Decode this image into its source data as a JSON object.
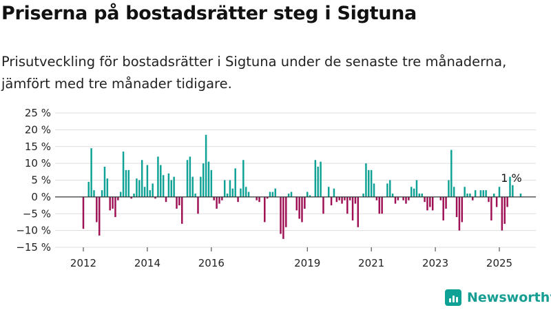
{
  "title": "Priserna på bostadsrätter steg i Sigtuna",
  "subtitle": "Prisutveckling för bostadsrätter i Sigtuna under de senaste tre månaderna, jämfört med tre månader tidigare.",
  "brand": {
    "name": "Newsworthy",
    "icon": "newsworthy-logo-icon"
  },
  "colors": {
    "positive": "#0ea296",
    "negative": "#9e0f55",
    "grid": "#dddddd",
    "zero": "#333333"
  },
  "chart_data": {
    "type": "bar",
    "title": "",
    "xlabel": "",
    "ylabel": "",
    "ylim": [
      -15,
      25
    ],
    "yticks": [
      25,
      20,
      15,
      10,
      5,
      0,
      -5,
      -10,
      -15
    ],
    "ytick_labels": [
      "25 %",
      "20 %",
      "15 %",
      "10 %",
      "5 %",
      "0 %",
      "−5 %",
      "−10 %",
      "−15 %"
    ],
    "xticks": [
      {
        "date": "2012-01",
        "label": "2012"
      },
      {
        "date": "2014-01",
        "label": "2014"
      },
      {
        "date": "2016-01",
        "label": "2016"
      },
      {
        "date": "2019-01",
        "label": "2019"
      },
      {
        "date": "2021-01",
        "label": "2021"
      },
      {
        "date": "2023-01",
        "label": "2023"
      },
      {
        "date": "2025-01",
        "label": "2025"
      }
    ],
    "start": "2012-01",
    "end": "2025-05",
    "unit": "%",
    "grid": true,
    "annotation": {
      "date": "2025-05",
      "label": "1 %"
    },
    "values": [
      -9.5,
      0,
      4.5,
      14.5,
      2,
      -7.5,
      -11.5,
      2,
      9,
      5.5,
      -4,
      -3.5,
      -6,
      -1,
      1.5,
      13.5,
      8,
      8,
      -0.5,
      1,
      5.5,
      5,
      11,
      3,
      9.5,
      2,
      4,
      -0.5,
      12,
      9.5,
      6.5,
      -1.5,
      7,
      5,
      6,
      -3.5,
      -2.5,
      -8,
      0,
      11,
      12,
      6,
      1,
      -5,
      6,
      10,
      18.5,
      10.5,
      8,
      -1,
      -3.5,
      -2,
      -1,
      5,
      1,
      5,
      2.5,
      8.5,
      -1.5,
      2.5,
      11,
      3,
      1.5,
      0,
      0,
      -1,
      -1.5,
      0,
      -7.5,
      -0.5,
      1.5,
      1.5,
      2.5,
      0,
      -11,
      -12.5,
      -9,
      1,
      1.5,
      0,
      -4,
      -6.5,
      -7.5,
      -3.5,
      1.5,
      0.5,
      0,
      11,
      9,
      10.5,
      -5,
      0,
      3,
      -2.5,
      2.5,
      -1.5,
      -1,
      -2,
      -1,
      -5,
      -1,
      -7,
      -2,
      -9,
      0,
      1,
      10,
      8,
      8,
      4,
      -1,
      -5,
      -5,
      0,
      4,
      5,
      1,
      -2,
      -1,
      0,
      -1,
      -2,
      -1,
      3,
      2.5,
      5,
      1,
      1,
      -1.5,
      -4,
      -3,
      -4,
      0,
      0,
      -1,
      -7,
      -3.5,
      5,
      14,
      3,
      -6,
      -10,
      -7.5,
      3,
      1,
      1,
      -1,
      2,
      0,
      2,
      2,
      2,
      -1.5,
      -7,
      1,
      -3,
      3,
      -10,
      -8,
      -3,
      6,
      3.5,
      0,
      0,
      1
    ]
  }
}
